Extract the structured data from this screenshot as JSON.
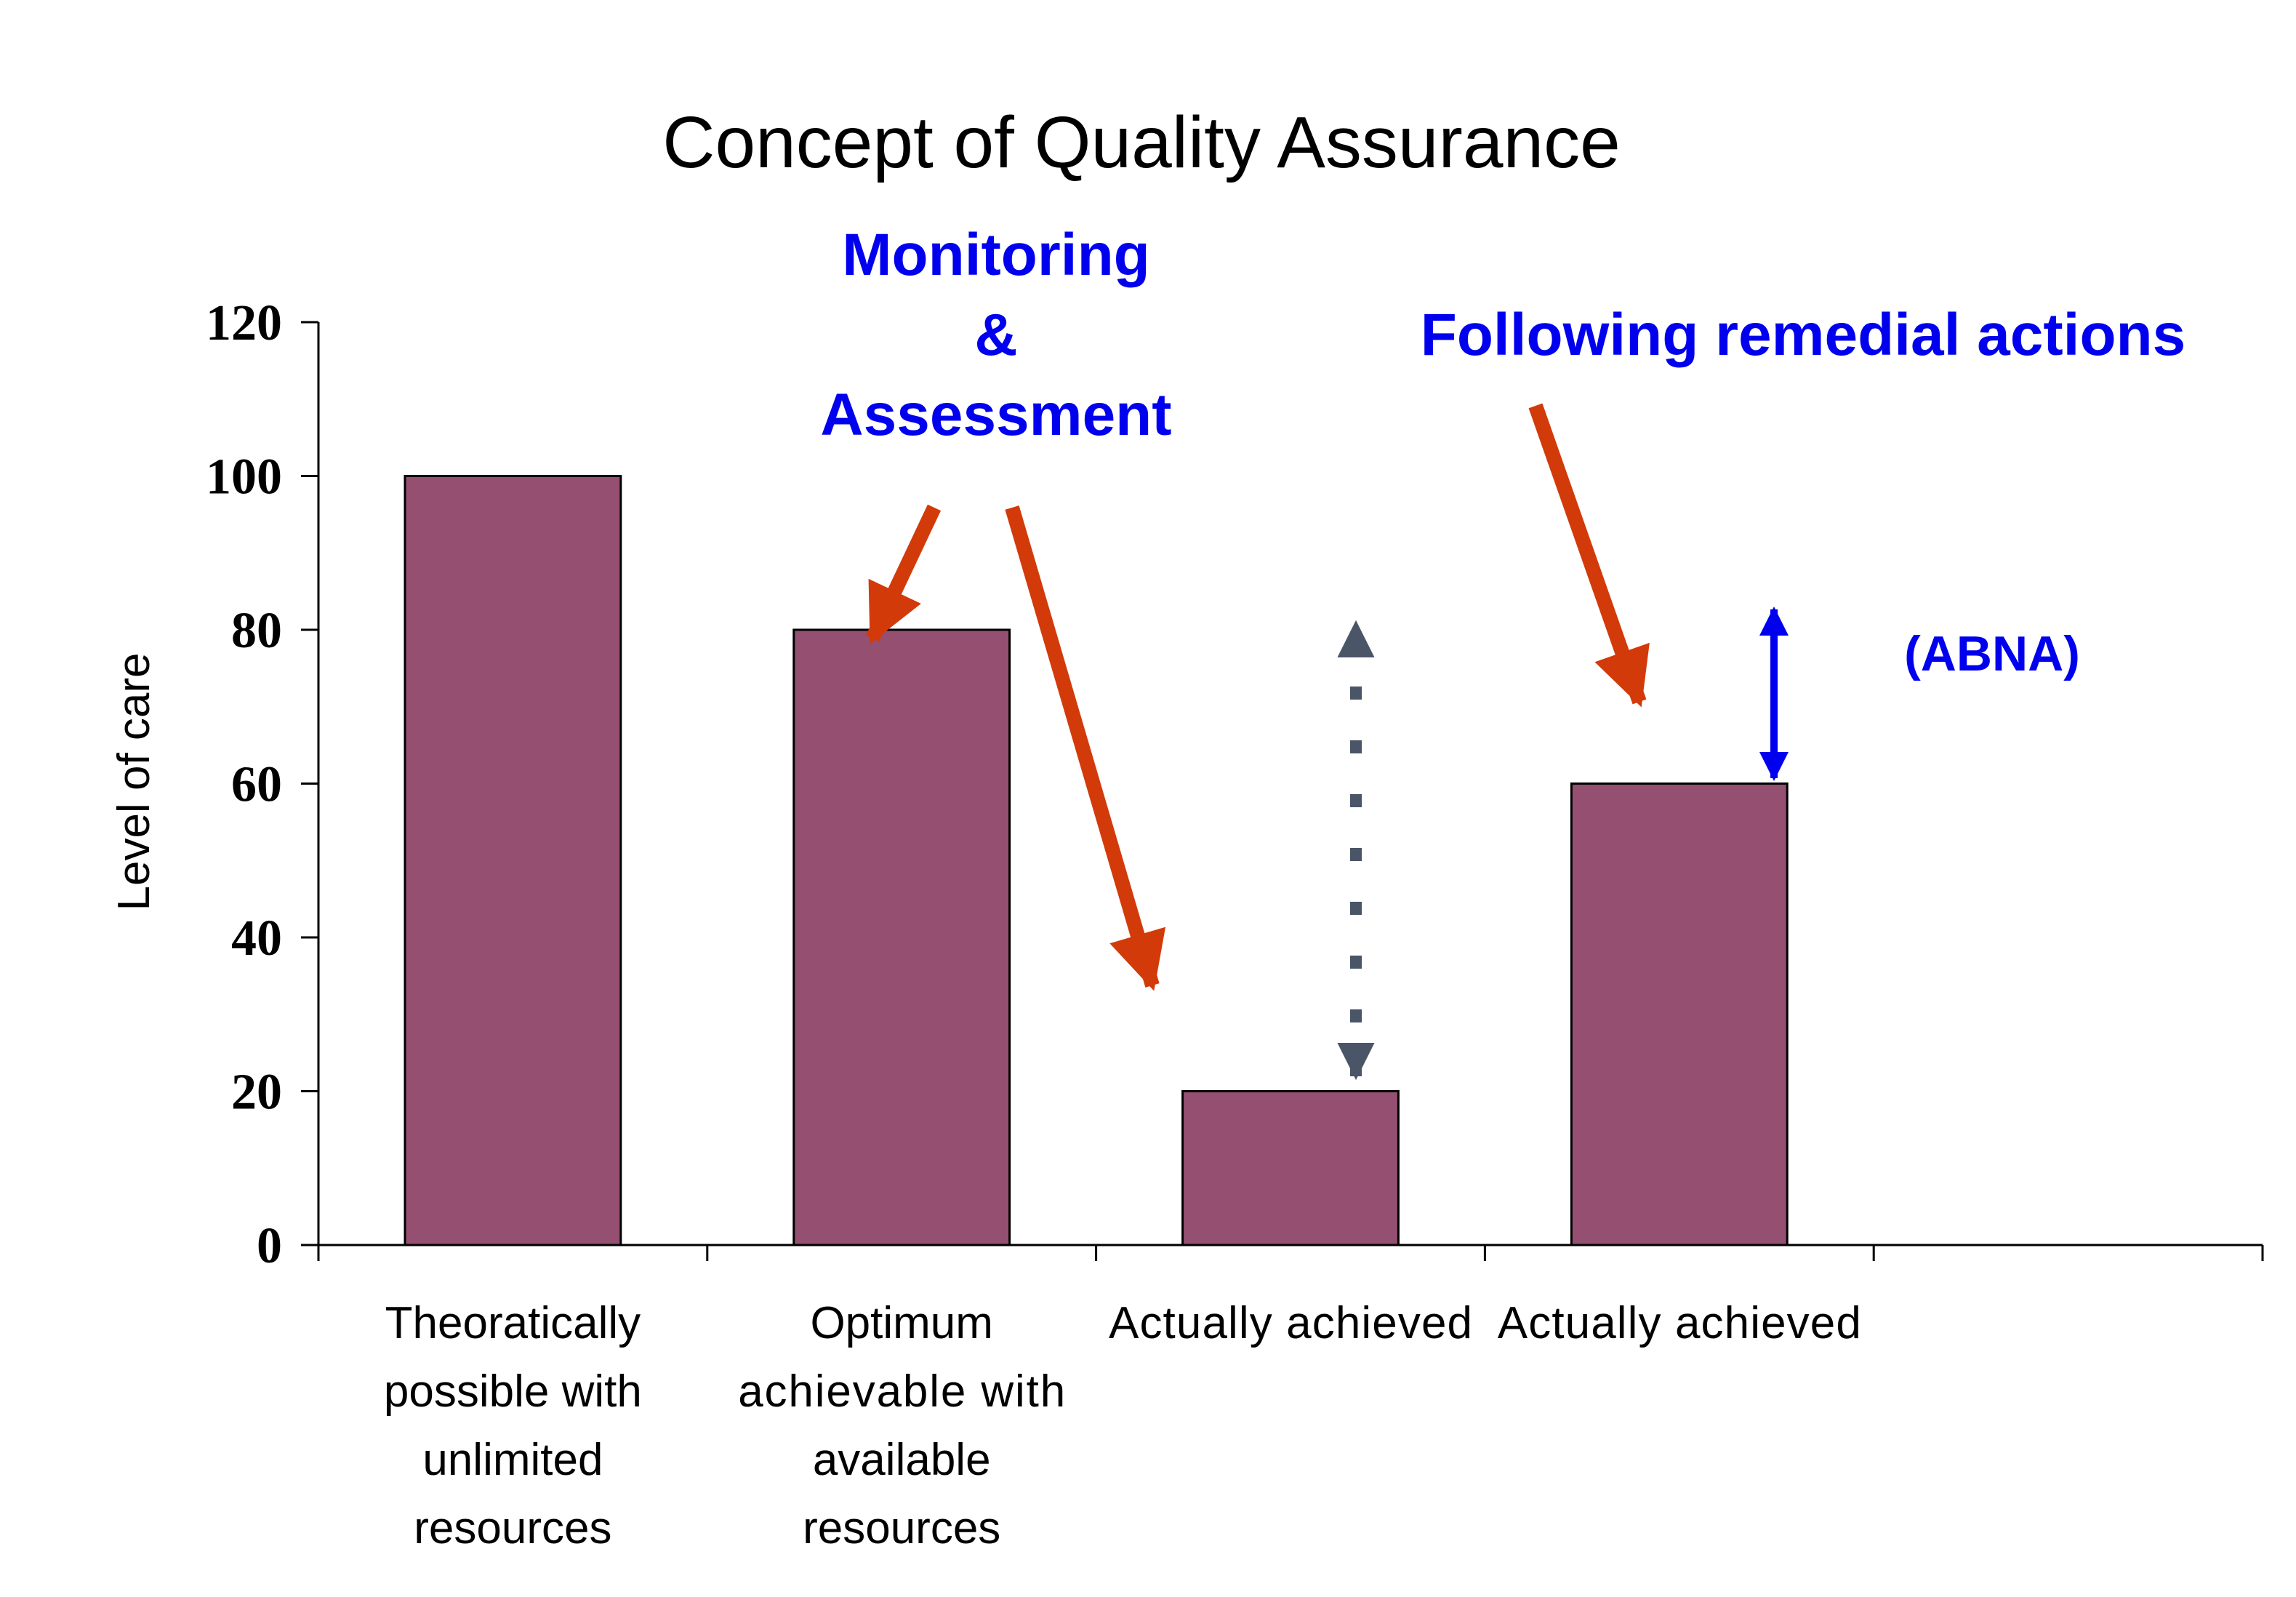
{
  "chart_data": {
    "type": "bar",
    "title": "Concept of Quality Assurance",
    "ylabel": "Level of care",
    "xlabel": "",
    "ylim": [
      0,
      120
    ],
    "yticks": [
      0,
      20,
      40,
      60,
      80,
      100,
      120
    ],
    "grid": false,
    "bar_color": "#954F70",
    "categories": [
      [
        "Theoratically",
        "possible with",
        "unlimited",
        "resources"
      ],
      [
        "Optimum",
        "achievable with",
        "available",
        "resources"
      ],
      [
        "Actually achieved"
      ],
      [
        "Actually achieved"
      ],
      [
        ""
      ]
    ],
    "values": [
      100,
      80,
      20,
      60,
      null
    ],
    "annotations": {
      "monitoring": [
        "Monitoring",
        "&",
        "Assessment"
      ],
      "remedial": "Following remedial actions",
      "abna": "(ABNA)",
      "annotation_color": "#0000EE",
      "arrow_color": "#D23A0A",
      "gap_arrow_color": "#4A5568"
    }
  }
}
